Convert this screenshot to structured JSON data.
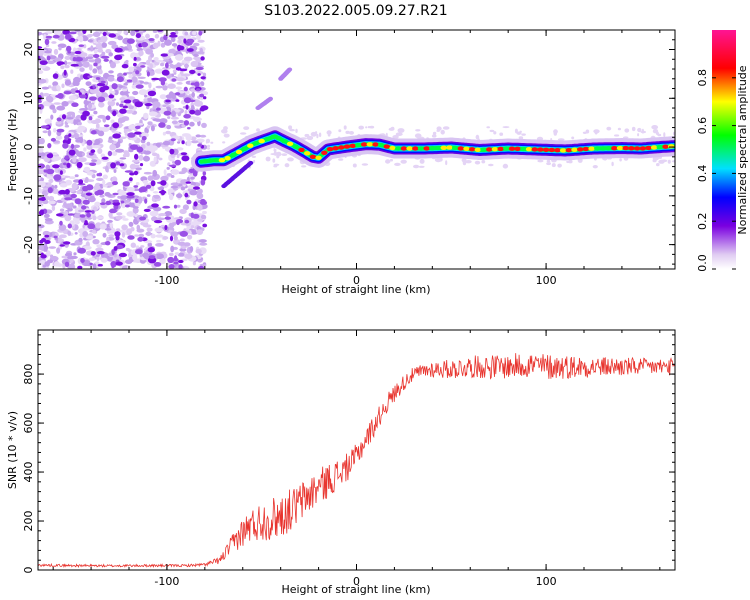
{
  "title": "S103.2022.005.09.27.R21",
  "chart_data": [
    {
      "type": "heatmap",
      "xlabel": "Height of straight line (km)",
      "ylabel": "Frequency (Hz)",
      "xlim": [
        -168,
        168
      ],
      "ylim": [
        -25,
        24
      ],
      "x_ticks": [
        -100,
        0,
        100
      ],
      "y_ticks": [
        -20,
        -10,
        0,
        10,
        20
      ],
      "x_tick_labels": [
        "-100",
        "0",
        "100"
      ],
      "y_tick_labels": [
        "-20",
        "-10",
        "0",
        "10",
        "20"
      ],
      "noise_region_x": [
        -168,
        -80
      ],
      "ridge_x": [
        -82,
        -75,
        -70,
        -62,
        -55,
        -48,
        -43,
        -38,
        -33,
        -28,
        -23,
        -20,
        -15,
        -10,
        -3,
        5,
        12,
        20,
        35,
        50,
        65,
        80,
        95,
        110,
        125,
        140,
        150,
        160,
        168
      ],
      "ridge_freq": [
        -3,
        -2.7,
        -2.7,
        -1,
        0.5,
        1.5,
        2.2,
        1.2,
        0.3,
        -0.8,
        -2,
        -2.2,
        -0.5,
        -0.2,
        0.2,
        0.6,
        0.5,
        -0.3,
        -0.3,
        -0.1,
        -0.6,
        -0.3,
        -0.5,
        -0.7,
        -0.3,
        -0.2,
        -0.3,
        0,
        0.2
      ],
      "colorbar": {
        "label": "Normalized spectral amplitude",
        "ticks": [
          0.0,
          0.2,
          0.4,
          0.6,
          0.8
        ],
        "tick_labels": [
          "0.0",
          "0.2",
          "0.4",
          "0.6",
          "0.8"
        ],
        "range": [
          0,
          1
        ],
        "colormap": [
          "#e0ccf2",
          "#7a00e0",
          "#0000ff",
          "#00e0ff",
          "#00ff00",
          "#ffff00",
          "#ff0000",
          "#ff1493"
        ]
      }
    },
    {
      "type": "line",
      "xlabel": "Height of straight line (km)",
      "ylabel": "SNR (10 * v/v)",
      "xlim": [
        -168,
        168
      ],
      "ylim": [
        0,
        980
      ],
      "x_ticks": [
        -100,
        0,
        100
      ],
      "y_ticks": [
        0,
        200,
        400,
        600,
        800
      ],
      "x_tick_labels": [
        "-100",
        "0",
        "100"
      ],
      "y_tick_labels": [
        "0",
        "200",
        "400",
        "600",
        "800"
      ],
      "series": [
        {
          "color": "#e8342e",
          "x": [
            -168,
            -150,
            -130,
            -110,
            -90,
            -80,
            -72,
            -68,
            -62,
            -56,
            -50,
            -44,
            -38,
            -32,
            -26,
            -20,
            -14,
            -8,
            -2,
            4,
            10,
            16,
            22,
            28,
            34,
            40,
            50,
            60,
            70,
            80,
            90,
            100,
            110,
            120,
            130,
            140,
            150,
            160,
            168
          ],
          "y": [
            20,
            18,
            17,
            18,
            18,
            22,
            40,
            80,
            140,
            180,
            200,
            210,
            230,
            260,
            300,
            340,
            370,
            400,
            440,
            520,
            600,
            680,
            740,
            790,
            810,
            820,
            820,
            830,
            830,
            830,
            840,
            830,
            830,
            830,
            830,
            830,
            830,
            830,
            830
          ],
          "noise": [
            5,
            5,
            5,
            5,
            5,
            6,
            15,
            30,
            55,
            70,
            80,
            90,
            90,
            85,
            80,
            75,
            70,
            60,
            55,
            50,
            45,
            40,
            35,
            30,
            30,
            35,
            40,
            45,
            50,
            50,
            55,
            55,
            50,
            45,
            40,
            40,
            35,
            35,
            35
          ]
        }
      ]
    }
  ]
}
